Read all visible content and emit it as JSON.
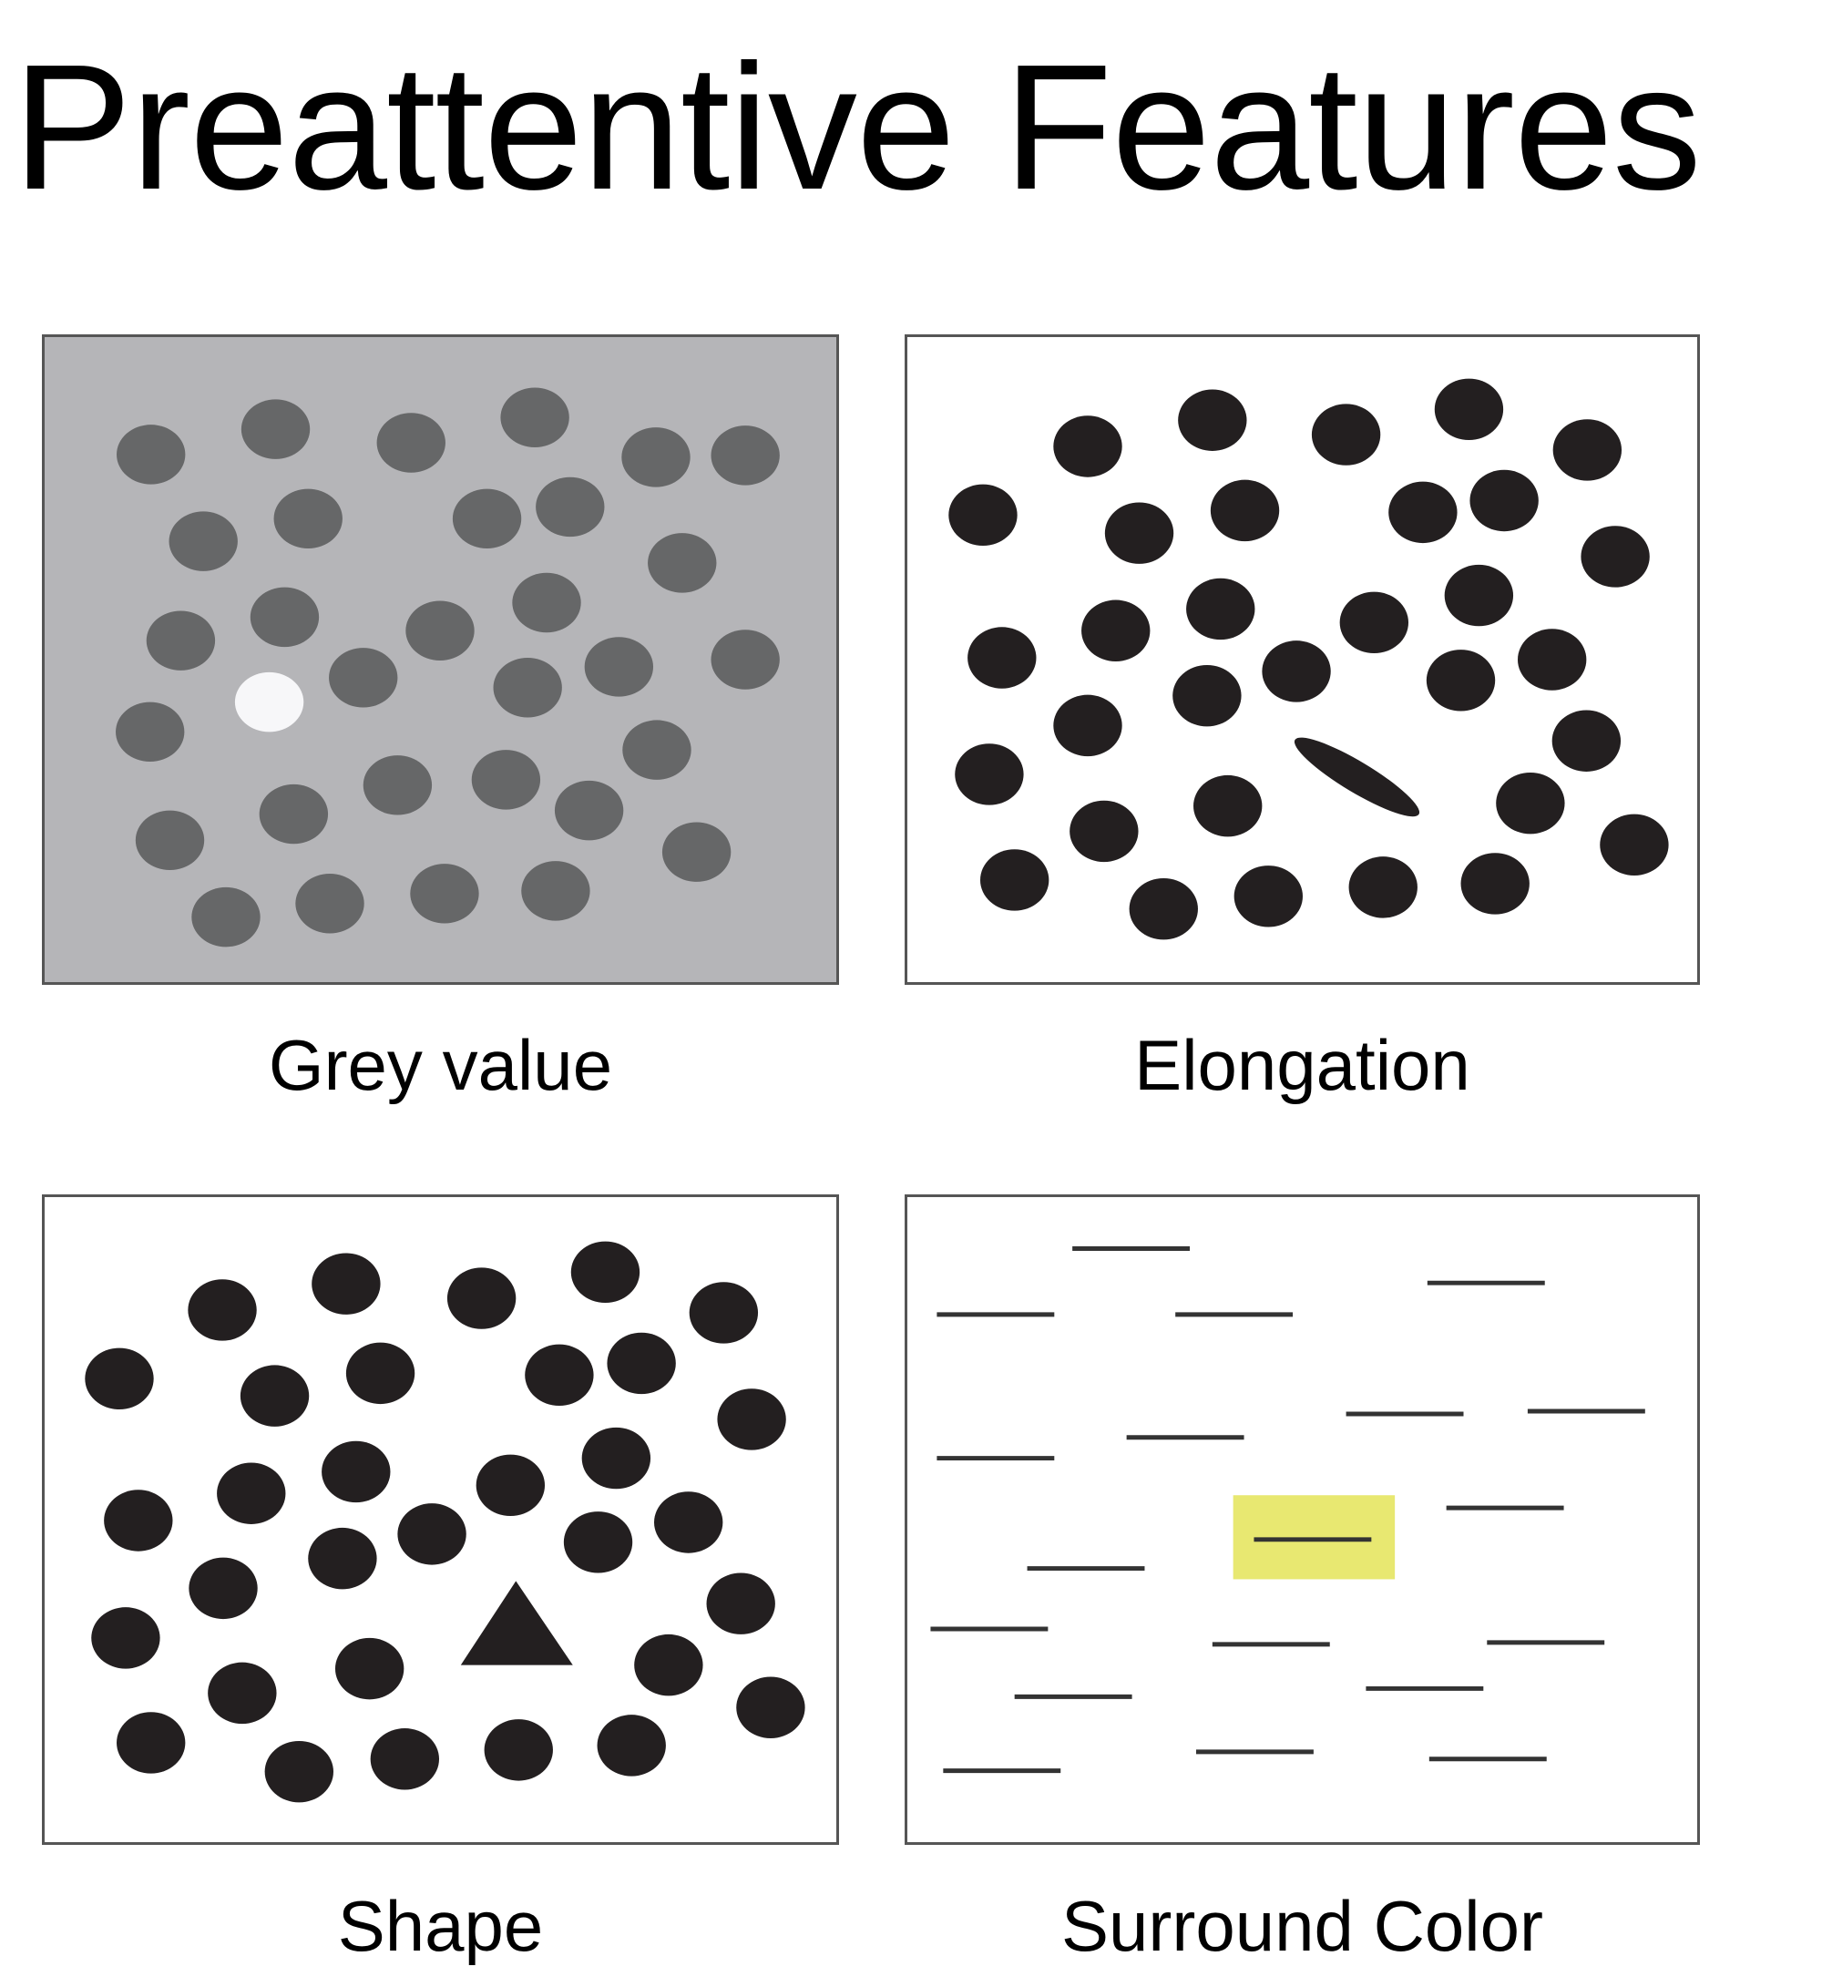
{
  "title": "Preattentive Features",
  "panels": {
    "grey_value": {
      "label": "Grey value"
    },
    "elongation": {
      "label": "Elongation"
    },
    "shape": {
      "label": "Shape"
    },
    "surround_color": {
      "label": "Surround Color"
    }
  },
  "colors": {
    "grey_background": "#b5b5b8",
    "grey_distractor": "#666768",
    "grey_target": "#f7f7f9",
    "dot": "#231f20",
    "highlight": "#e8e871",
    "border": "#555555"
  }
}
